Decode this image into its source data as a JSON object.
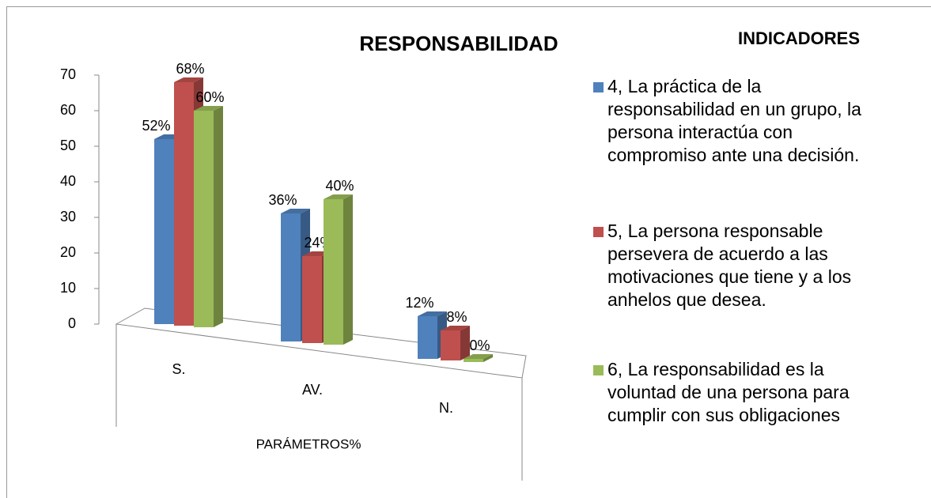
{
  "chart_data": {
    "type": "bar3d",
    "title": "RESPONSABILIDAD",
    "legend_title": "INDICADORES",
    "x_label": "PARÁMETROS%",
    "categories": [
      "S.",
      "AV.",
      "N."
    ],
    "series": [
      {
        "name": "4, La práctica de la responsabilidad en un grupo, la persona interactúa con compromiso ante una decisión.",
        "color": "#4f81bd",
        "values": [
          52,
          36,
          12
        ],
        "value_labels": [
          "52%",
          "36%",
          "12%"
        ]
      },
      {
        "name": "5, La persona responsable persevera de acuerdo a las motivaciones que tiene y a los anhelos que desea.",
        "color": "#c0504d",
        "values": [
          68,
          24,
          8
        ],
        "value_labels": [
          "68%",
          "24%",
          "8%"
        ]
      },
      {
        "name": "6, La responsabilidad es la voluntad de una persona para cumplir con sus obligaciones",
        "color": "#9bbb59",
        "values": [
          60,
          40,
          0
        ],
        "value_labels": [
          "60%",
          "40%",
          "0%"
        ]
      }
    ],
    "ylim": [
      0,
      70
    ],
    "yticks": [
      0,
      10,
      20,
      30,
      40,
      50,
      60,
      70
    ],
    "legend": "right"
  }
}
